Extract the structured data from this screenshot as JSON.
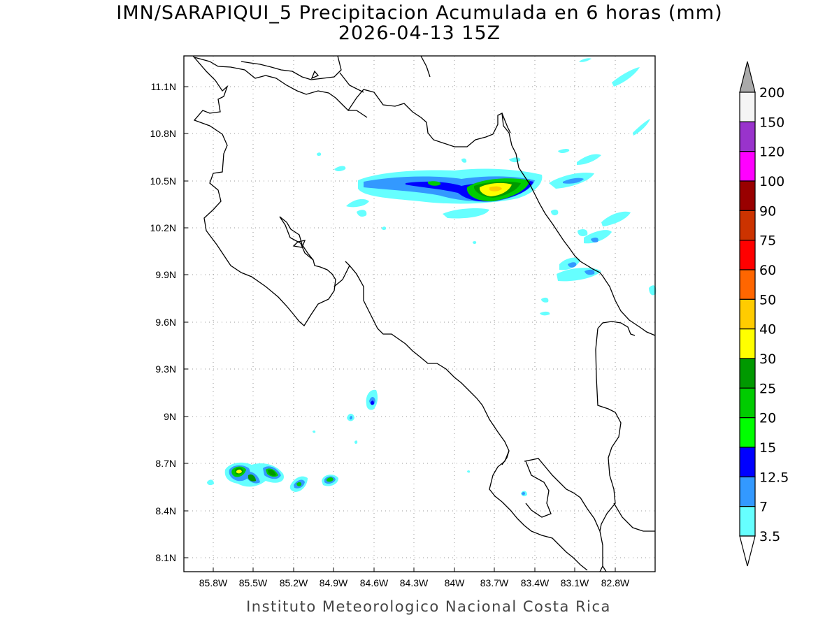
{
  "title": "IMN/SARAPIQUI_5 Precipitacion Acumulada en 6 horas (mm)",
  "subtitle": "2026-04-13 15Z",
  "credit": "Instituto Meteorologico Nacional Costa Rica",
  "map": {
    "lon_ticks": [
      "85.8W",
      "85.5W",
      "85.2W",
      "84.9W",
      "84.6W",
      "84.3W",
      "84W",
      "83.7W",
      "83.4W",
      "83.1W",
      "82.8W"
    ],
    "lat_ticks": [
      "11.1N",
      "10.8N",
      "10.5N",
      "10.2N",
      "9.9N",
      "9.6N",
      "9.3N",
      "9N",
      "8.7N",
      "8.4N",
      "8.1N"
    ],
    "grid": true
  },
  "colorbar": {
    "labels": [
      "200",
      "150",
      "120",
      "100",
      "90",
      "75",
      "60",
      "50",
      "40",
      "30",
      "25",
      "20",
      "15",
      "12.5",
      "7",
      "3.5"
    ],
    "colors": [
      "#f5f5f5",
      "#9933cc",
      "#ff00ff",
      "#990000",
      "#cc3300",
      "#ff0000",
      "#ff6600",
      "#ffcc00",
      "#ffff00",
      "#009900",
      "#00cc00",
      "#00ff00",
      "#0000ff",
      "#3399ff",
      "#66ffff"
    ],
    "over_color": "#aaaaaa",
    "under_color": "#ffffff"
  }
}
